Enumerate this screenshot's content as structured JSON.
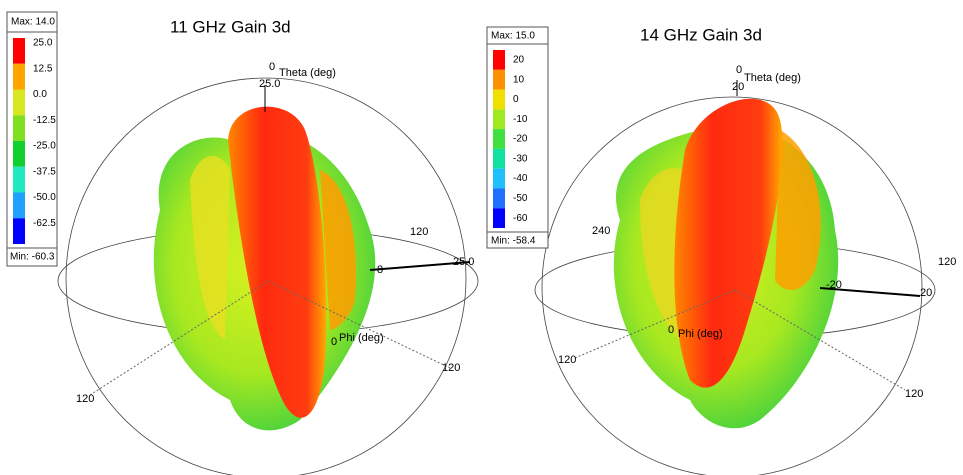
{
  "panels": [
    {
      "title": "11 GHz Gain 3d",
      "max": "Max: 14.0",
      "min": "Min: -60.3",
      "legend": [
        "25.0",
        "12.5",
        "0.0",
        "-12.5",
        "-25.0",
        "-37.5",
        "-50.0",
        "-62.5"
      ],
      "labels": [
        "0",
        "Theta (deg)",
        "25.0",
        "120",
        "25.0",
        "8",
        "0",
        "Phi (deg)",
        "120",
        "120"
      ]
    },
    {
      "title": "14 GHz Gain 3d",
      "max": "Max: 15.0",
      "min": "Min: -58.4",
      "legend": [
        "20",
        "10",
        "0",
        "-10",
        "-20",
        "-30",
        "-40",
        "-50",
        "-60"
      ],
      "labels": [
        "0",
        "Theta (deg)",
        "20",
        "240",
        "120",
        "-20",
        "20",
        "0",
        "Phi (deg)",
        "120",
        "120"
      ]
    }
  ]
}
